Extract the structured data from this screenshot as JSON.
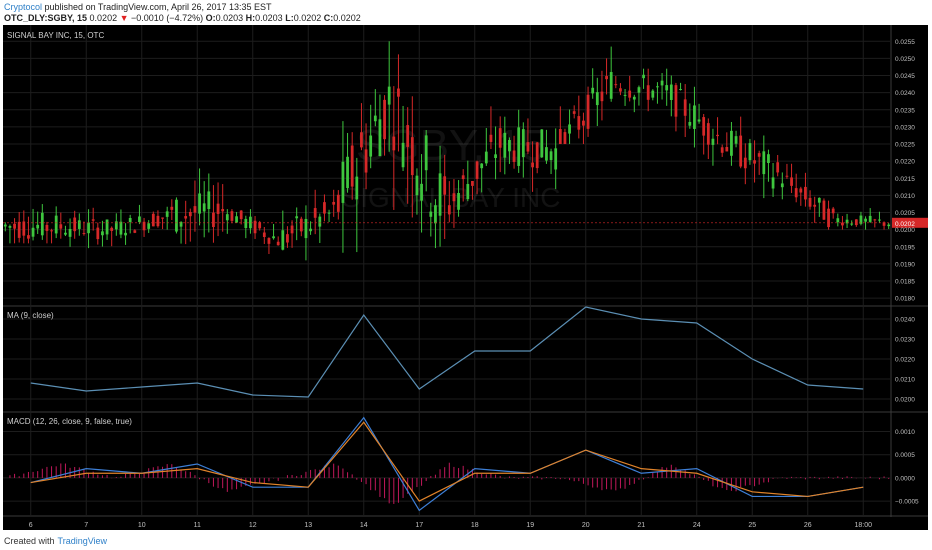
{
  "header": {
    "author": "Cryptocol",
    "published_text": "published on TradingView.com, April 26, 2017 13:35 EST",
    "symbol_line": "OTC_DLY:SGBY, 15",
    "last_price": "0.0202",
    "change_arrow": "▼",
    "change": "−0.0010 (−4.72%)",
    "o_label": "O:",
    "o_value": "0.0203",
    "h_label": "H:",
    "h_value": "0.0203",
    "l_label": "L:",
    "l_value": "0.0202",
    "c_label": "C:",
    "c_value": "0.0202"
  },
  "footer": {
    "created_with": "Created with",
    "brand": "TradingView"
  },
  "colors": {
    "background": "#000000",
    "up": "#3ec63e",
    "down": "#d62828",
    "ma_line": "#5b8fb4",
    "macd_line": "#3d7fd6",
    "signal_line": "#e0832a",
    "hist": "#c2185b",
    "grid": "#1d1d1d",
    "axis_text": "#c0c0c0"
  },
  "chart_data": [
    {
      "type": "candlestick",
      "title": "SIGNAL BAY INC, 15, OTC",
      "watermark_symbol": "SGBY, 15",
      "watermark_name": "SIGNAL BAY INC",
      "price_tag": "0.0202",
      "ylim": [
        0.0178,
        0.0258
      ],
      "y_ticks": [
        "0.0180",
        "0.0185",
        "0.0190",
        "0.0195",
        "0.0200",
        "0.0205",
        "0.0210",
        "0.0215",
        "0.0220",
        "0.0225",
        "0.0230",
        "0.0235",
        "0.0240",
        "0.0245",
        "0.0250",
        "0.0255"
      ],
      "x_ticks": [
        "6",
        "7",
        "10",
        "11",
        "12",
        "13",
        "14",
        "17",
        "18",
        "19",
        "20",
        "21",
        "24",
        "25",
        "26",
        "18:00"
      ],
      "session_closes": [
        0.0201,
        0.02,
        0.0204,
        0.0206,
        0.0197,
        0.0205,
        0.0238,
        0.0206,
        0.0225,
        0.0223,
        0.0243,
        0.024,
        0.0226,
        0.0216,
        0.0203,
        0.0202
      ],
      "session_highs": [
        0.0219,
        0.0208,
        0.021,
        0.0228,
        0.0206,
        0.0216,
        0.0255,
        0.0252,
        0.0236,
        0.0238,
        0.0255,
        0.0247,
        0.0245,
        0.0233,
        0.022,
        0.021
      ],
      "session_lows": [
        0.0196,
        0.019,
        0.0194,
        0.0195,
        0.019,
        0.0189,
        0.0192,
        0.0182,
        0.02,
        0.0205,
        0.0225,
        0.0222,
        0.0218,
        0.0204,
        0.02,
        0.02
      ]
    },
    {
      "type": "line",
      "title": "MA (9, close)",
      "ylim": [
        0.0194,
        0.0246
      ],
      "y_ticks": [
        "0.0200",
        "0.0210",
        "0.0220",
        "0.0230",
        "0.0240"
      ],
      "values": [
        0.0208,
        0.0204,
        0.0206,
        0.0208,
        0.0202,
        0.0201,
        0.0242,
        0.0205,
        0.0224,
        0.0224,
        0.0246,
        0.024,
        0.0238,
        0.022,
        0.0207,
        0.0205
      ]
    },
    {
      "type": "line",
      "title": "MACD (12, 26, close, 9, false, true)",
      "ylim": [
        -0.0008,
        0.0014
      ],
      "y_ticks": [
        "0.0010",
        "0.0005",
        "0.0000",
        "−0.0005"
      ],
      "series": [
        {
          "values": [
            -0.0001,
            0.0002,
            0.0001,
            0.0003,
            -0.0002,
            -0.0002,
            0.0013,
            -0.0007,
            0.0002,
            0.0001,
            0.0006,
            0.0001,
            0.0002,
            -0.0004,
            -0.0004,
            -0.0002
          ]
        },
        {
          "values": [
            -0.0001,
            0.0001,
            0.0001,
            0.0002,
            -0.0001,
            -0.0002,
            0.0012,
            -0.0005,
            0.0001,
            0.0001,
            0.0006,
            0.0002,
            0.0001,
            -0.0003,
            -0.0004,
            -0.0002
          ]
        }
      ]
    }
  ]
}
